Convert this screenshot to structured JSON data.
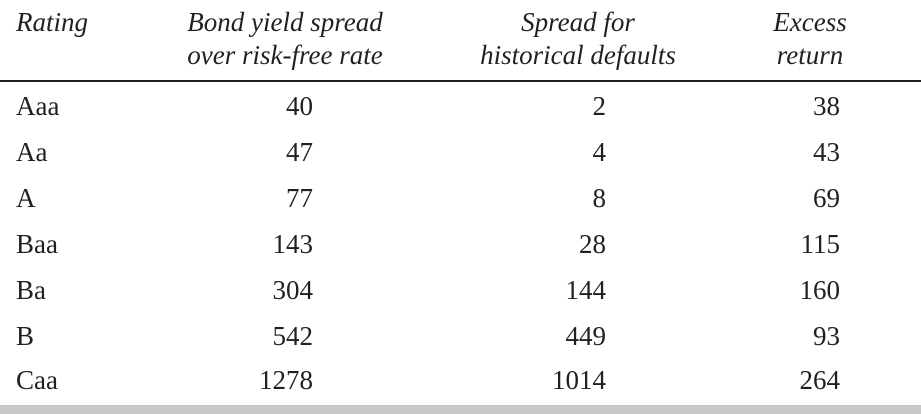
{
  "table": {
    "headers": {
      "rating": [
        "Rating"
      ],
      "bond_yield_spread": [
        "Bond yield spread",
        "over risk-free rate"
      ],
      "spread_historical_defaults": [
        "Spread for",
        "historical defaults"
      ],
      "excess_return": [
        "Excess",
        "return"
      ]
    },
    "rows": [
      {
        "rating": "Aaa",
        "bond_yield_spread": "40",
        "spread_historical_defaults": "2",
        "excess_return": "38"
      },
      {
        "rating": "Aa",
        "bond_yield_spread": "47",
        "spread_historical_defaults": "4",
        "excess_return": "43"
      },
      {
        "rating": "A",
        "bond_yield_spread": "77",
        "spread_historical_defaults": "8",
        "excess_return": "69"
      },
      {
        "rating": "Baa",
        "bond_yield_spread": "143",
        "spread_historical_defaults": "28",
        "excess_return": "115"
      },
      {
        "rating": "Ba",
        "bond_yield_spread": "304",
        "spread_historical_defaults": "144",
        "excess_return": "160"
      },
      {
        "rating": "B",
        "bond_yield_spread": "542",
        "spread_historical_defaults": "449",
        "excess_return": "93"
      },
      {
        "rating": "Caa",
        "bond_yield_spread": "1278",
        "spread_historical_defaults": "1014",
        "excess_return": "264"
      }
    ]
  },
  "colors": {
    "text": "#231f20",
    "rule": "#231f20",
    "bottom_band": "#c8c8c8",
    "background": "#ffffff"
  }
}
